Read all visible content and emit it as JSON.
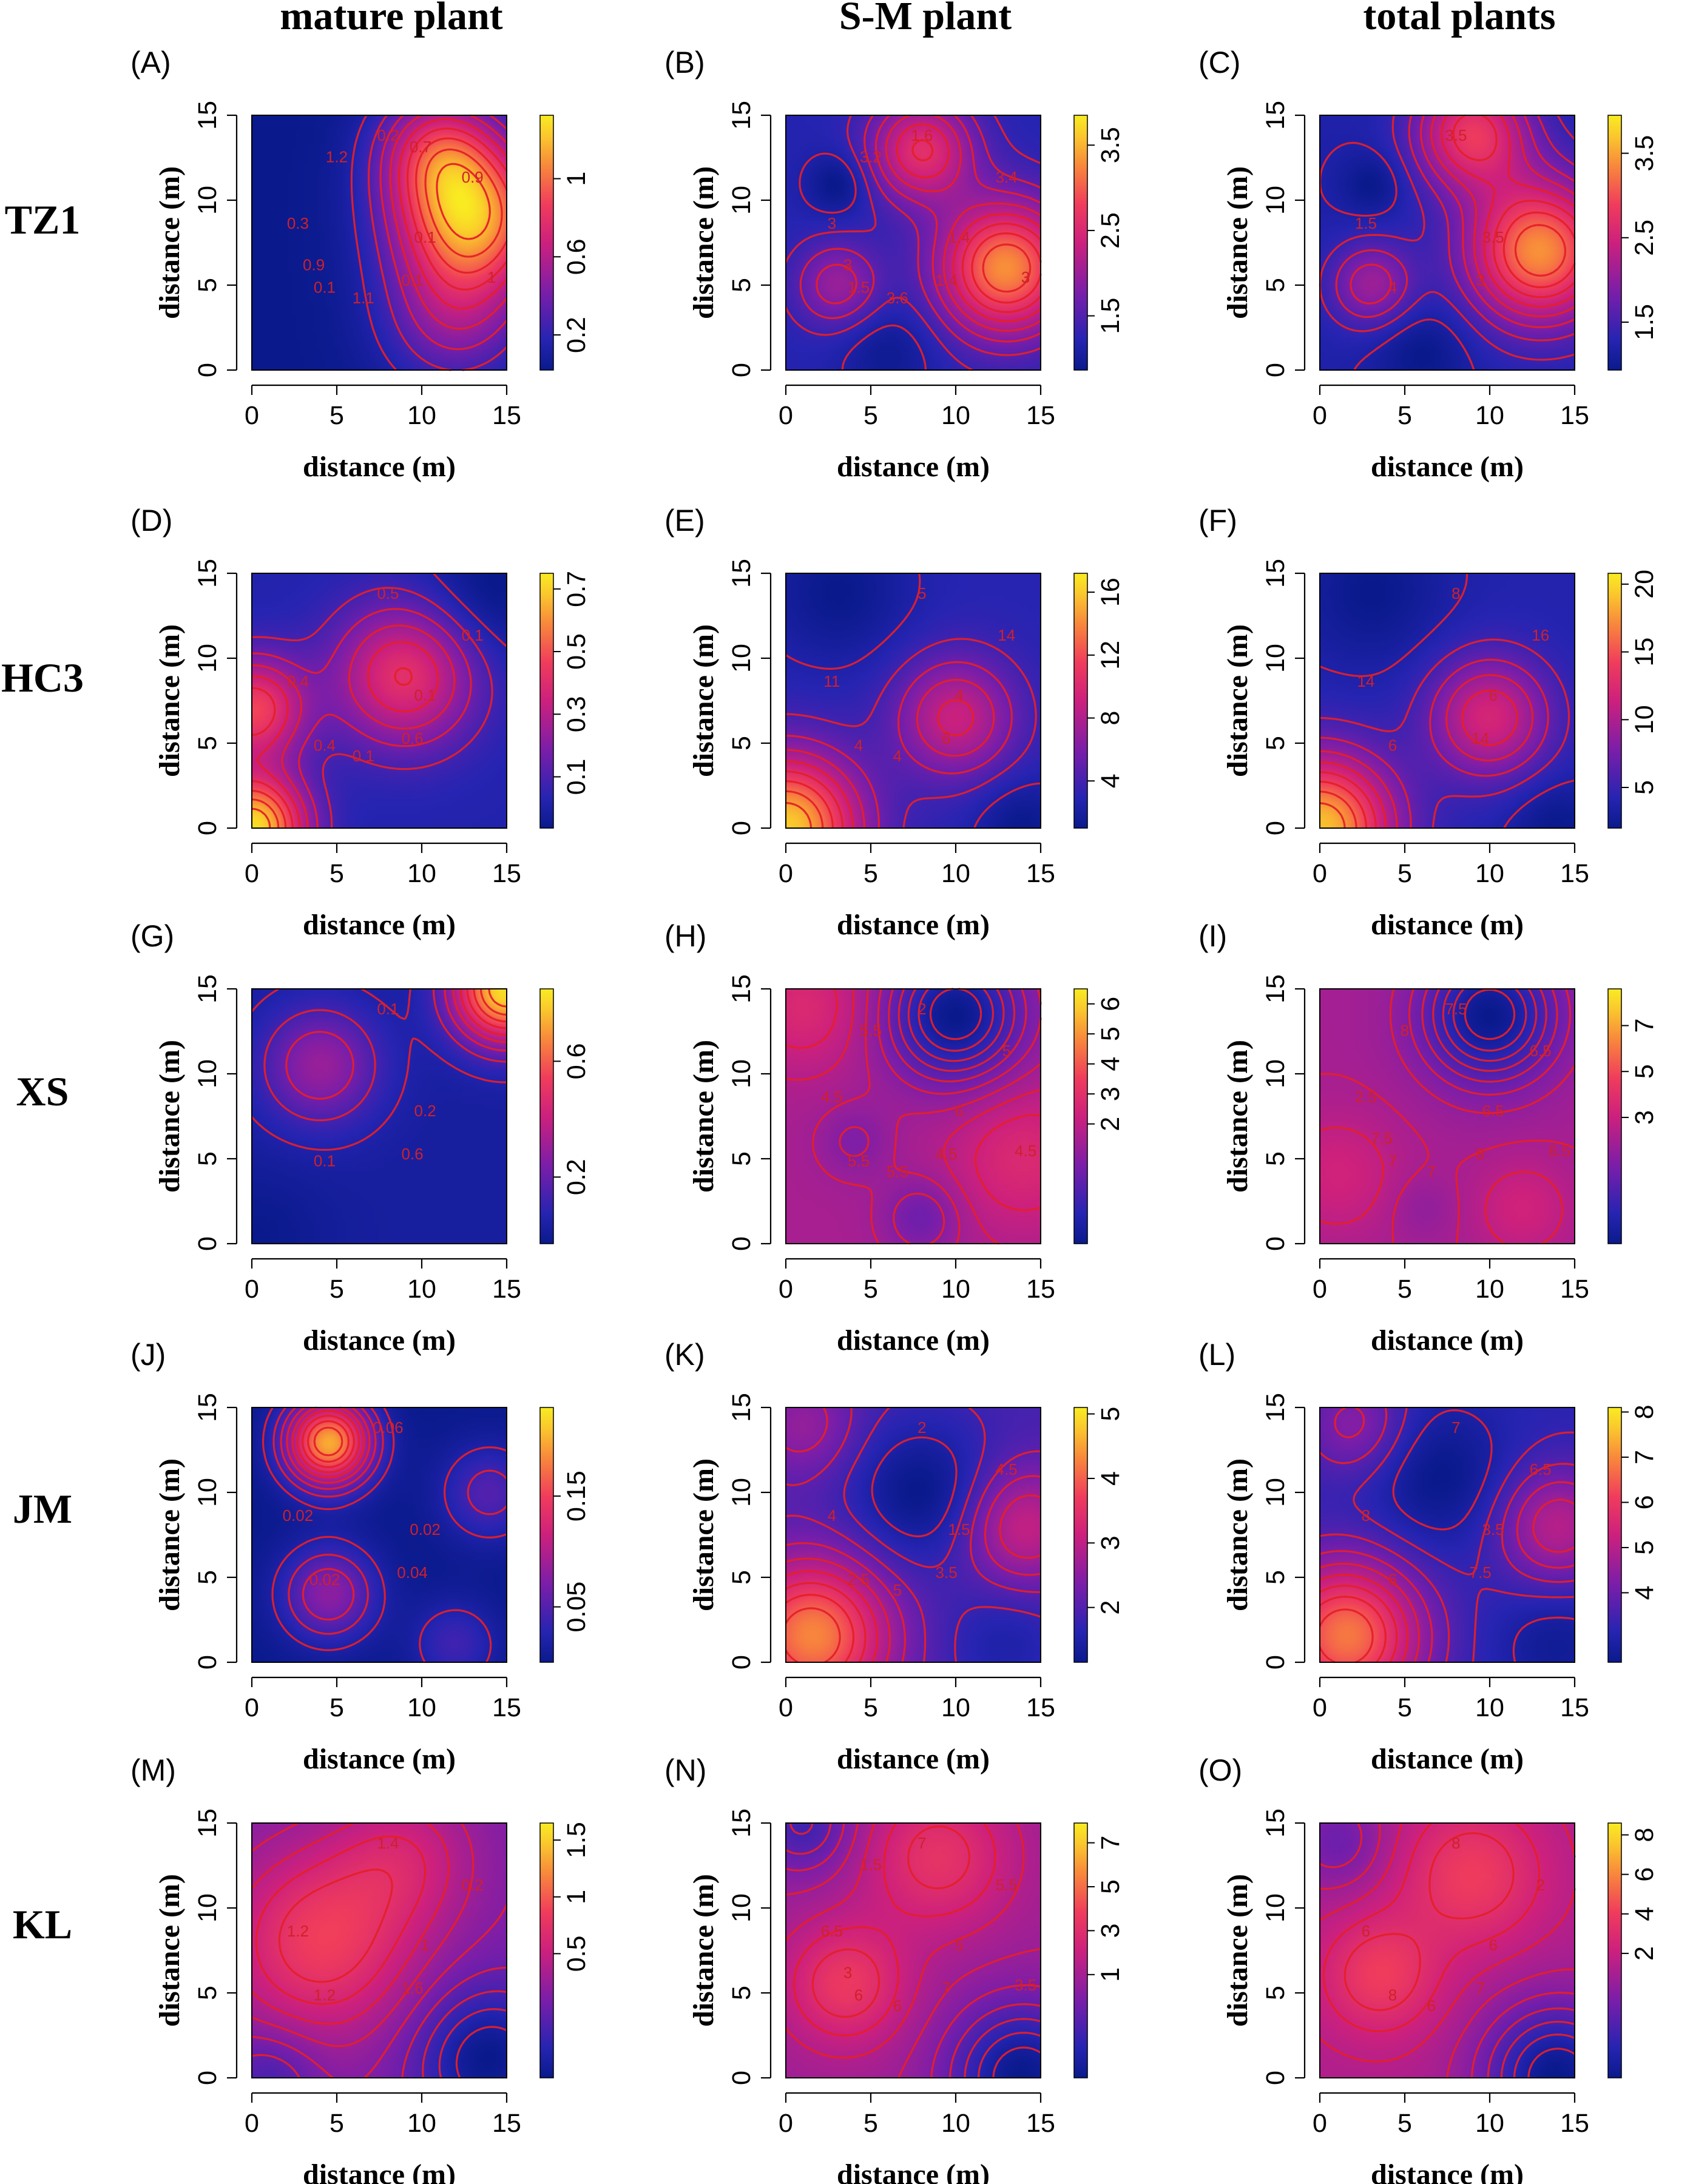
{
  "column_titles": [
    "mature plant",
    "S-M plant",
    "total plants"
  ],
  "row_labels": [
    "TZ1",
    "HC3",
    "XS",
    "JM",
    "KL"
  ],
  "axis": {
    "xlabel": "distance (m)",
    "ylabel": "distance (m)",
    "ticks": [
      "0",
      "5",
      "10",
      "15"
    ]
  },
  "colors": {
    "low": "#0a1a8c",
    "mid": "#e0207a",
    "high": "#f8e820",
    "contour": "#e4202a"
  },
  "chart_data": [
    {
      "id": "A",
      "type": "heatmap",
      "title": "(A)",
      "row": "TZ1",
      "column": "mature plant",
      "xlim": [
        0,
        15
      ],
      "ylim": [
        0,
        15
      ],
      "colorbar": {
        "ticks": [
          "0.2",
          "0.6",
          "1"
        ],
        "tick_values": [
          0.2,
          0.6,
          1.0
        ],
        "range": [
          0.02,
          1.28
        ]
      },
      "contour_labels": [
        "0.1",
        "0.1",
        "0.2",
        "0.1",
        "0.3",
        "0.9",
        "1.1",
        "1.2",
        "1",
        "0.9",
        "0.7"
      ],
      "hotspots": [
        [
          13,
          9,
          1.1,
          3.2
        ],
        [
          11,
          13,
          0.6,
          2.5
        ],
        [
          12,
          3,
          0.4,
          3
        ]
      ]
    },
    {
      "id": "B",
      "type": "heatmap",
      "title": "(B)",
      "row": "TZ1",
      "column": "S-M plant",
      "xlim": [
        0,
        15
      ],
      "ylim": [
        0,
        15
      ],
      "colorbar": {
        "ticks": [
          "1.5",
          "2.5",
          "3.5"
        ],
        "tick_values": [
          1.5,
          2.5,
          3.5
        ],
        "range": [
          1.2,
          3.85
        ]
      },
      "contour_labels": [
        "1.4",
        "1.5",
        "1.6",
        "1.4",
        "3",
        "3.4",
        "3.6",
        "3.2",
        "3",
        "3"
      ],
      "hotspots": [
        [
          13,
          6,
          2.1,
          2.8
        ],
        [
          8,
          13,
          1.4,
          2.2
        ],
        [
          3,
          5,
          0.8,
          1.8
        ],
        [
          3,
          11,
          -0.4,
          1.3
        ],
        [
          6,
          1,
          -0.3,
          2
        ]
      ]
    },
    {
      "id": "C",
      "type": "heatmap",
      "title": "(C)",
      "row": "TZ1",
      "column": "total plants",
      "xlim": [
        0,
        15
      ],
      "ylim": [
        0,
        15
      ],
      "colorbar": {
        "ticks": [
          "1.5",
          "2.5",
          "3.5"
        ],
        "tick_values": [
          1.5,
          2.5,
          3.5
        ],
        "range": [
          1.2,
          3.95
        ]
      },
      "contour_labels": [
        "3.5",
        "4",
        "3.5",
        "3",
        "1.5"
      ],
      "hotspots": [
        [
          13,
          7,
          2.2,
          3
        ],
        [
          9,
          14,
          1.6,
          2.4
        ],
        [
          3,
          5,
          0.9,
          1.8
        ],
        [
          3,
          11,
          -0.3,
          1.3
        ],
        [
          6,
          1,
          -0.3,
          2
        ]
      ]
    },
    {
      "id": "D",
      "type": "heatmap",
      "title": "(D)",
      "row": "HC3",
      "column": "mature plant",
      "xlim": [
        0,
        15
      ],
      "ylim": [
        0,
        15
      ],
      "colorbar": {
        "ticks": [
          "0.1",
          "0.3",
          "0.5",
          "0.7"
        ],
        "tick_values": [
          0.1,
          0.3,
          0.5,
          0.7
        ],
        "range": [
          0.02,
          0.75
        ]
      },
      "contour_labels": [
        "0.1",
        "0.4",
        "0.5",
        "0.6",
        "0.4",
        "0.1",
        "0.1"
      ],
      "hotspots": [
        [
          0,
          0,
          0.7,
          2.2
        ],
        [
          0,
          7,
          0.45,
          2.2
        ],
        [
          9,
          9,
          0.4,
          3
        ],
        [
          14,
          14,
          -0.1,
          3
        ]
      ]
    },
    {
      "id": "E",
      "type": "heatmap",
      "title": "(E)",
      "row": "HC3",
      "column": "S-M plant",
      "xlim": [
        0,
        15
      ],
      "ylim": [
        0,
        15
      ],
      "colorbar": {
        "ticks": [
          "4",
          "8",
          "12",
          "16"
        ],
        "tick_values": [
          4,
          8,
          12,
          16
        ],
        "range": [
          3,
          17.2
        ]
      },
      "contour_labels": [
        "4",
        "4",
        "5",
        "6",
        "11",
        "14",
        "4"
      ],
      "hotspots": [
        [
          0,
          0,
          13,
          3
        ],
        [
          10,
          6.5,
          6,
          2.5
        ],
        [
          3,
          14,
          -2,
          3
        ],
        [
          14,
          0,
          -2,
          2
        ]
      ]
    },
    {
      "id": "F",
      "type": "heatmap",
      "title": "(F)",
      "row": "HC3",
      "column": "total plants",
      "xlim": [
        0,
        15
      ],
      "ylim": [
        0,
        15
      ],
      "colorbar": {
        "ticks": [
          "5",
          "10",
          "15",
          "20"
        ],
        "tick_values": [
          5,
          10,
          15,
          20
        ],
        "range": [
          4,
          20.8
        ]
      },
      "contour_labels": [
        "6",
        "6",
        "8",
        "14",
        "14",
        "16"
      ],
      "hotspots": [
        [
          0,
          0,
          15,
          3
        ],
        [
          10,
          6.5,
          8,
          2.5
        ],
        [
          3,
          14,
          -2,
          3
        ],
        [
          14,
          0,
          -2,
          2
        ]
      ]
    },
    {
      "id": "G",
      "type": "heatmap",
      "title": "(G)",
      "row": "XS",
      "column": "mature plant",
      "xlim": [
        0,
        15
      ],
      "ylim": [
        0,
        15
      ],
      "colorbar": {
        "ticks": [
          "0.2",
          "0.6"
        ],
        "tick_values": [
          0.2,
          0.6
        ],
        "range": [
          0.02,
          0.85
        ]
      },
      "contour_labels": [
        "0.2",
        "0.1",
        "0.1",
        "0.6"
      ],
      "hotspots": [
        [
          15,
          15,
          0.8,
          2.2
        ],
        [
          4,
          10.5,
          0.28,
          2.5
        ],
        [
          0,
          0,
          -0.05,
          3
        ]
      ]
    },
    {
      "id": "H",
      "type": "heatmap",
      "title": "(H)",
      "row": "XS",
      "column": "S-M plant",
      "xlim": [
        0,
        15
      ],
      "ylim": [
        0,
        15
      ],
      "colorbar": {
        "ticks": [
          "2",
          "3",
          "4",
          "5",
          "6"
        ],
        "tick_values": [
          2,
          3,
          4,
          5,
          6
        ],
        "range": [
          1.5,
          6.5
        ]
      },
      "contour_labels": [
        "6",
        "5.5",
        "2",
        "4.5",
        "4.5",
        "5",
        "5.5",
        "5.5",
        "4.5"
      ],
      "hotspots": [
        [
          10,
          13.5,
          -3.5,
          2.8
        ],
        [
          1,
          14,
          1.2,
          2.5
        ],
        [
          14,
          5,
          1.2,
          3
        ],
        [
          4,
          6,
          -0.8,
          1.5
        ],
        [
          8,
          1.5,
          -1.2,
          1.6
        ]
      ]
    },
    {
      "id": "I",
      "type": "heatmap",
      "title": "(I)",
      "row": "XS",
      "column": "total plants",
      "xlim": [
        0,
        15
      ],
      "ylim": [
        0,
        15
      ],
      "colorbar": {
        "ticks": [
          "3",
          "5",
          "7"
        ],
        "tick_values": [
          3,
          5,
          7
        ],
        "range": [
          2,
          8.6
        ]
      },
      "contour_labels": [
        "6.5",
        "7",
        "7.5",
        "8",
        "2.5",
        "6.5",
        "7",
        "8",
        "6.5",
        "7.5"
      ],
      "hotspots": [
        [
          10,
          13.5,
          -4.5,
          2.8
        ],
        [
          1,
          4,
          1.2,
          2.5
        ],
        [
          12,
          2,
          1.2,
          2
        ],
        [
          6,
          2,
          -0.6,
          1.3
        ]
      ]
    },
    {
      "id": "J",
      "type": "heatmap",
      "title": "(J)",
      "row": "JM",
      "column": "mature plant",
      "xlim": [
        0,
        15
      ],
      "ylim": [
        0,
        15
      ],
      "colorbar": {
        "ticks": [
          "0.05",
          "0.15"
        ],
        "tick_values": [
          0.05,
          0.15
        ],
        "range": [
          0.0,
          0.23
        ]
      },
      "contour_labels": [
        "0.02",
        "0.02",
        "0.06",
        "0.04",
        "0.02"
      ],
      "hotspots": [
        [
          4.5,
          13,
          0.2,
          1.8
        ],
        [
          4.5,
          4,
          0.08,
          2
        ],
        [
          14,
          10,
          0.05,
          2
        ],
        [
          12,
          1,
          0.04,
          1.8
        ]
      ]
    },
    {
      "id": "K",
      "type": "heatmap",
      "title": "(K)",
      "row": "JM",
      "column": "S-M plant",
      "xlim": [
        0,
        15
      ],
      "ylim": [
        0,
        15
      ],
      "colorbar": {
        "ticks": [
          "2",
          "3",
          "4",
          "5"
        ],
        "tick_values": [
          2,
          3,
          4,
          5
        ],
        "range": [
          1.9,
          5.1
        ]
      },
      "contour_labels": [
        "1.5",
        "2.5",
        "2",
        "3.5",
        "4",
        "4.5",
        "5"
      ],
      "hotspots": [
        [
          1.5,
          1.5,
          2.4,
          3.2
        ],
        [
          14,
          8,
          1.2,
          2.5
        ],
        [
          1,
          14,
          0.7,
          2.2
        ],
        [
          8,
          10,
          -0.8,
          3
        ],
        [
          13,
          1,
          -0.4,
          2.5
        ]
      ]
    },
    {
      "id": "L",
      "type": "heatmap",
      "title": "(L)",
      "row": "JM",
      "column": "total plants",
      "xlim": [
        0,
        15
      ],
      "ylim": [
        0,
        15
      ],
      "colorbar": {
        "ticks": [
          "4",
          "5",
          "6",
          "7",
          "8"
        ],
        "tick_values": [
          4,
          5,
          6,
          7,
          8
        ],
        "range": [
          3.2,
          8.1
        ]
      },
      "contour_labels": [
        "3.5",
        "6",
        "7",
        "7.5",
        "8",
        "6.5"
      ],
      "hotspots": [
        [
          1.5,
          1.5,
          3.6,
          3.2
        ],
        [
          14,
          8,
          1.8,
          2.5
        ],
        [
          2,
          14,
          1.2,
          2.2
        ],
        [
          7,
          11,
          -0.8,
          3
        ],
        [
          14,
          1,
          -0.6,
          2.5
        ]
      ]
    },
    {
      "id": "M",
      "type": "heatmap",
      "title": "(M)",
      "row": "KL",
      "column": "mature plant",
      "xlim": [
        0,
        15
      ],
      "ylim": [
        0,
        15
      ],
      "colorbar": {
        "ticks": [
          "0.5",
          "1",
          "1.5"
        ],
        "tick_values": [
          0.5,
          1,
          1.5
        ],
        "range": [
          0.1,
          1.65
        ]
      },
      "contour_labels": [
        "1",
        "1.2",
        "1.4",
        "1.6",
        "1.2",
        "0.2"
      ],
      "hotspots": [
        [
          4,
          8,
          0.75,
          4
        ],
        [
          9,
          13,
          0.4,
          3
        ],
        [
          14,
          1,
          -0.7,
          3
        ],
        [
          1,
          0,
          -0.3,
          2
        ]
      ]
    },
    {
      "id": "N",
      "type": "heatmap",
      "title": "(N)",
      "row": "KL",
      "column": "S-M plant",
      "xlim": [
        0,
        15
      ],
      "ylim": [
        0,
        15
      ],
      "colorbar": {
        "ticks": [
          "1",
          "3",
          "5",
          "7"
        ],
        "tick_values": [
          1,
          3,
          5,
          7
        ],
        "range": [
          0.8,
          7.9
        ]
      },
      "contour_labels": [
        "5",
        "6",
        "7",
        "7",
        "6.5",
        "5.5",
        "6",
        "1.5",
        "3.5",
        "3"
      ],
      "hotspots": [
        [
          3.5,
          5.5,
          2.8,
          2.5
        ],
        [
          9,
          13,
          2.5,
          3
        ],
        [
          14,
          0,
          -4.5,
          3
        ],
        [
          1,
          15,
          -2.5,
          2
        ]
      ]
    },
    {
      "id": "O",
      "type": "heatmap",
      "title": "(O)",
      "row": "KL",
      "column": "total plants",
      "xlim": [
        0,
        15
      ],
      "ylim": [
        0,
        15
      ],
      "colorbar": {
        "ticks": [
          "2",
          "4",
          "6",
          "8"
        ],
        "tick_values": [
          2,
          4,
          6,
          8
        ],
        "range": [
          1.2,
          8.6
        ]
      },
      "contour_labels": [
        "6",
        "8",
        "8",
        "7",
        "6",
        "2",
        "6"
      ],
      "hotspots": [
        [
          3.5,
          6,
          2.8,
          2.5
        ],
        [
          9,
          12,
          2.8,
          3
        ],
        [
          14,
          0,
          -5.5,
          3
        ],
        [
          1,
          14,
          -2,
          2
        ]
      ]
    }
  ]
}
